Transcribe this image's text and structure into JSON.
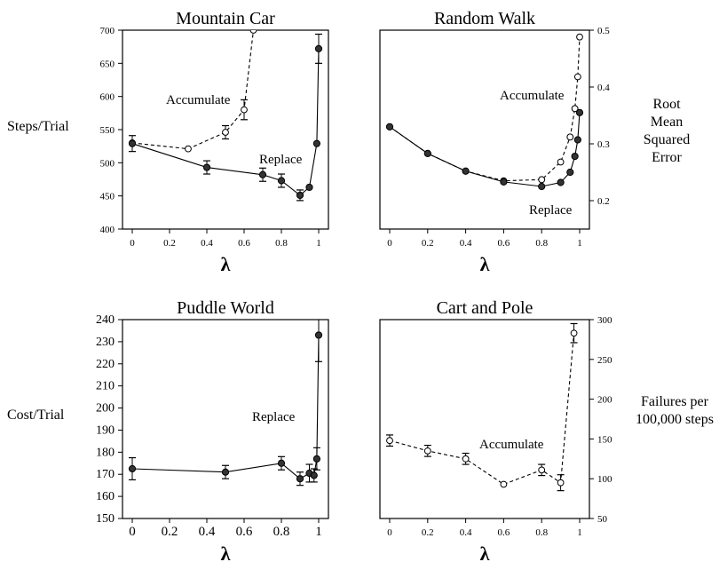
{
  "chart_data": [
    {
      "type": "line",
      "title": "Mountain Car",
      "xlabel": "λ",
      "ylabel": "Steps/Trial",
      "xlim": [
        0,
        1
      ],
      "ylim": [
        400,
        700
      ],
      "xticks": [
        "0",
        "0.2",
        "0.4",
        "0.6",
        "0.8",
        "1"
      ],
      "yticks": [
        "400",
        "450",
        "500",
        "550",
        "600",
        "650",
        "700"
      ],
      "yaxis_side": "left",
      "grid": false,
      "annotations": [
        "Accumulate",
        "Replace"
      ],
      "series": [
        {
          "name": "Accumulate",
          "style": "dashed",
          "marker": "open-circle",
          "x": [
            0,
            0.3,
            0.5,
            0.6,
            0.65
          ],
          "y": [
            530,
            521,
            546,
            580,
            700
          ],
          "err": [
            0,
            0,
            10,
            15,
            0
          ]
        },
        {
          "name": "Replace",
          "style": "solid",
          "marker": "filled-circle",
          "x": [
            0,
            0.4,
            0.7,
            0.8,
            0.9,
            0.95,
            0.99,
            1.0
          ],
          "y": [
            529,
            493,
            482,
            473,
            451,
            463,
            529,
            672
          ],
          "err": [
            12,
            10,
            10,
            10,
            8,
            0,
            0,
            22
          ]
        }
      ]
    },
    {
      "type": "line",
      "title": "Random Walk",
      "xlabel": "λ",
      "ylabel": "Root Mean Squared Error",
      "xlim": [
        0,
        1
      ],
      "ylim": [
        0.15,
        0.5
      ],
      "xticks": [
        "0",
        "0.2",
        "0.4",
        "0.6",
        "0.8",
        "1"
      ],
      "yticks": [
        "0.2",
        "0.3",
        "0.4",
        "0.5"
      ],
      "yaxis_side": "right",
      "grid": false,
      "annotations": [
        "Accumulate",
        "Replace"
      ],
      "series": [
        {
          "name": "Accumulate",
          "style": "dashed",
          "marker": "open-circle",
          "x": [
            0,
            0.2,
            0.4,
            0.6,
            0.8,
            0.9,
            0.95,
            0.975,
            0.99,
            1.0
          ],
          "y": [
            0.33,
            0.283,
            0.252,
            0.235,
            0.237,
            0.268,
            0.312,
            0.362,
            0.418,
            0.488
          ]
        },
        {
          "name": "Replace",
          "style": "solid",
          "marker": "filled-circle",
          "x": [
            0,
            0.2,
            0.4,
            0.6,
            0.8,
            0.9,
            0.95,
            0.975,
            0.99,
            1.0
          ],
          "y": [
            0.33,
            0.283,
            0.252,
            0.233,
            0.225,
            0.232,
            0.25,
            0.278,
            0.307,
            0.355
          ]
        }
      ]
    },
    {
      "type": "line",
      "title": "Puddle World",
      "xlabel": "λ",
      "ylabel": "Cost/Trial",
      "xlim": [
        0,
        1
      ],
      "ylim": [
        150,
        240
      ],
      "xticks": [
        "0",
        "0.2",
        "0.4",
        "0.6",
        "0.8",
        "1"
      ],
      "yticks": [
        "150",
        "160",
        "170",
        "180",
        "190",
        "200",
        "210",
        "220",
        "230",
        "240"
      ],
      "yaxis_side": "left",
      "grid": false,
      "annotations": [
        "Replace"
      ],
      "series": [
        {
          "name": "Replace",
          "style": "solid",
          "marker": "filled-circle",
          "x": [
            0,
            0.5,
            0.8,
            0.9,
            0.95,
            0.975,
            0.99,
            1.0
          ],
          "y": [
            172.5,
            171,
            175,
            168,
            170.5,
            169.5,
            177,
            233
          ],
          "err": [
            5,
            3,
            3,
            3,
            4,
            3,
            5,
            12
          ]
        }
      ]
    },
    {
      "type": "line",
      "title": "Cart and Pole",
      "xlabel": "λ",
      "ylabel": "Failures per 100,000 steps",
      "xlim": [
        0,
        1
      ],
      "ylim": [
        50,
        300
      ],
      "xticks": [
        "0",
        "0.2",
        "0.4",
        "0.6",
        "0.8",
        "1"
      ],
      "yticks": [
        "50",
        "100",
        "150",
        "200",
        "250",
        "300"
      ],
      "yaxis_side": "right",
      "grid": false,
      "annotations": [
        "Accumulate"
      ],
      "series": [
        {
          "name": "Accumulate",
          "style": "dashed",
          "marker": "open-circle",
          "x": [
            0,
            0.2,
            0.4,
            0.6,
            0.8,
            0.9,
            0.97
          ],
          "y": [
            148,
            135,
            125,
            93,
            111,
            95,
            283
          ],
          "err": [
            7,
            7,
            7,
            0,
            7,
            10,
            12
          ]
        }
      ]
    }
  ],
  "labels": {
    "mountain_car_ylabel": "Steps/Trial",
    "random_walk_ylabel": [
      "Root",
      "Mean",
      "Squared",
      "Error"
    ],
    "puddle_world_ylabel": "Cost/Trial",
    "cart_pole_ylabel": [
      "Failures per",
      "100,000 steps"
    ]
  }
}
